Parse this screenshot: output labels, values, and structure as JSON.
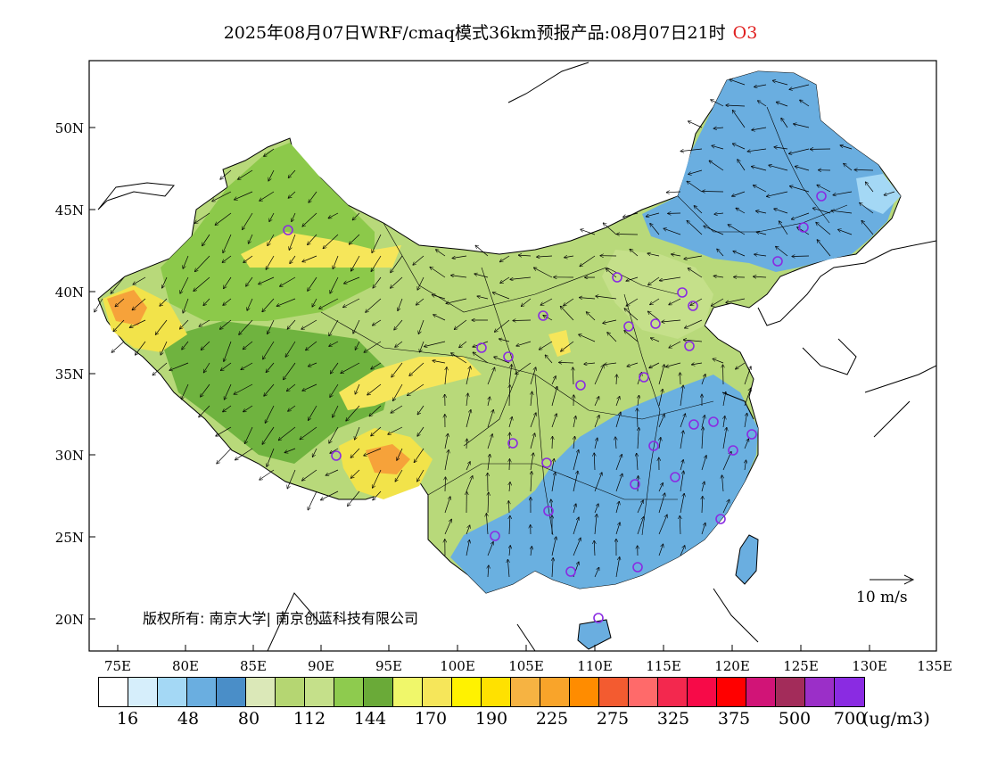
{
  "title": {
    "text": "2025年08月07日WRF/cmaq模式36km预报产品:08月07日21时",
    "species": "O3"
  },
  "axes": {
    "lat_labels": [
      "50N",
      "45N",
      "40N",
      "35N",
      "30N",
      "25N",
      "20N"
    ],
    "lon_labels": [
      "75E",
      "80E",
      "85E",
      "90E",
      "95E",
      "100E",
      "105E",
      "110E",
      "115E",
      "120E",
      "125E",
      "130E",
      "135E"
    ]
  },
  "map": {
    "background_colors": {
      "ocean": "#ffffff",
      "border": "#000000",
      "outline": "#000000"
    },
    "regions": [
      {
        "name": "northwest",
        "color": "#8cc94a"
      },
      {
        "name": "west",
        "color": "#6fb33f"
      },
      {
        "name": "central",
        "color": "#b8d97a"
      },
      {
        "name": "southeast",
        "color": "#6ab0e0"
      },
      {
        "name": "northeast",
        "color": "#6aaee0"
      },
      {
        "name": "hotspot_high",
        "color": "#f2e34a"
      },
      {
        "name": "hotspot_peak",
        "color": "#f6a23a"
      }
    ],
    "wind_scale_label": "10 m/s",
    "copyright": "版权所有: 南京大学| 南京创蓝科技有限公司"
  },
  "legend": {
    "colors": [
      "#ffffff",
      "#d6eefb",
      "#a4d8f5",
      "#6aaee0",
      "#4a8ec8",
      "#dbe8b8",
      "#b5d672",
      "#c5e08a",
      "#8ecb4e",
      "#6aaa38",
      "#f0f76a",
      "#f6e65a",
      "#fff200",
      "#ffe100",
      "#f6b342",
      "#f9a42a",
      "#ff8c00",
      "#f35b30",
      "#ff6a6a",
      "#f3284e",
      "#f70a48",
      "#ff0000",
      "#d11477",
      "#a32c5a",
      "#9b2fc8",
      "#8a2be2"
    ],
    "ticks": [
      "16",
      "48",
      "80",
      "112",
      "144",
      "170",
      "190",
      "225",
      "275",
      "325",
      "375",
      "500",
      "700"
    ],
    "unit": "(ug/m3)"
  }
}
